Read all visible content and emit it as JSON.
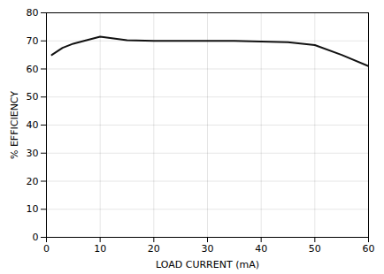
{
  "chart_data": {
    "type": "line",
    "x": [
      1,
      3,
      5,
      7,
      10,
      15,
      20,
      25,
      30,
      35,
      40,
      45,
      50,
      55,
      60
    ],
    "values": [
      65.0,
      67.5,
      69.0,
      70.0,
      71.5,
      70.2,
      70.0,
      70.0,
      70.0,
      70.0,
      69.8,
      69.5,
      68.5,
      65.0,
      61.0
    ],
    "color": "#111111",
    "xlabel": "LOAD CURRENT (mA)",
    "ylabel": "% EFFICIENCY",
    "xlim": [
      0,
      60
    ],
    "ylim": [
      0,
      80
    ],
    "xticks": [
      0,
      10,
      20,
      30,
      40,
      50,
      60
    ],
    "yticks": [
      0,
      10,
      20,
      30,
      40,
      50,
      60,
      70,
      80
    ],
    "grid": true
  }
}
